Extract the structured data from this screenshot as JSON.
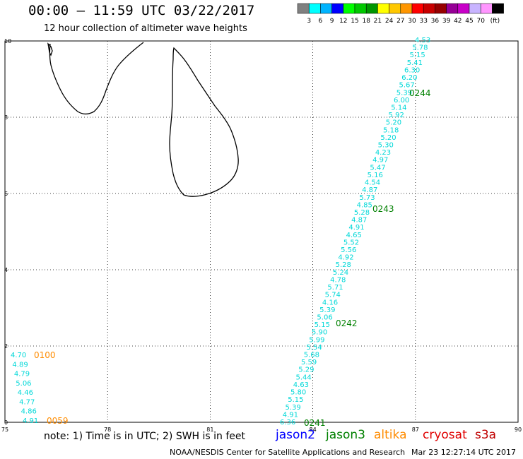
{
  "header": {
    "title": "00:00 – 11:59 UTC 03/22/2017",
    "subtitle": "12 hour collection of altimeter wave heights"
  },
  "legend": {
    "unit": "(ft)",
    "colors": [
      "#808080",
      "#00ffff",
      "#00b4ff",
      "#0000ff",
      "#00ff00",
      "#00c800",
      "#009600",
      "#ffff00",
      "#ffc800",
      "#ff9600",
      "#ff0000",
      "#c80000",
      "#960000",
      "#960096",
      "#c800c8",
      "#c8b4ff",
      "#ff96ff",
      "#000000"
    ],
    "labels": [
      "3",
      "6",
      "9",
      "12",
      "15",
      "18",
      "21",
      "24",
      "27",
      "30",
      "33",
      "36",
      "39",
      "42",
      "45",
      "70"
    ]
  },
  "axes": {
    "x_ticks": [
      "75",
      "78",
      "81",
      "84",
      "87",
      "90"
    ],
    "y_ticks": [
      "0",
      "2",
      "4",
      "6",
      "8",
      "10"
    ]
  },
  "tracks": [
    {
      "name": "jason3_main",
      "color": "#00d8d8",
      "values": [
        "6.36",
        "4.91",
        "5.39",
        "5.15",
        "5.80",
        "4.63",
        "5.44",
        "5.29",
        "5.59",
        "5.68",
        "5.54",
        "5.99",
        "5.90",
        "5.15",
        "5.06",
        "5.39",
        "4.16",
        "5.74",
        "5.71",
        "4.78",
        "5.24",
        "5.28",
        "4.92",
        "5.56",
        "5.52",
        "4.65",
        "4.91",
        "4.87",
        "5.28",
        "4.85",
        "5.73",
        "4.87",
        "4.54",
        "5.16",
        "5.47",
        "4.97",
        "4.23",
        "5.30",
        "5.20",
        "5.18",
        "5.20",
        "5.92",
        "5.14",
        "6.00",
        "5.39",
        "5.67",
        "6.20",
        "6.30",
        "5.41",
        "5.15",
        "5.78",
        "4.53"
      ]
    },
    {
      "name": "altika_west",
      "color": "#00d8d8",
      "values": [
        "4.91",
        "4.86",
        "4.77",
        "4.46",
        "5.06",
        "4.79",
        "4.89",
        "4.70"
      ]
    }
  ],
  "time_labels": [
    {
      "text": "0241",
      "color": "#008000"
    },
    {
      "text": "0242",
      "color": "#008000"
    },
    {
      "text": "0243",
      "color": "#008000"
    },
    {
      "text": "0244",
      "color": "#008000"
    },
    {
      "text": "0059",
      "color": "#ff8c00"
    },
    {
      "text": "0100",
      "color": "#ff8c00"
    }
  ],
  "note": "note: 1) Time is in UTC; 2) SWH is in feet",
  "satellites": [
    {
      "name": "jason2",
      "color": "#0000ff"
    },
    {
      "name": "jason3",
      "color": "#008000"
    },
    {
      "name": "altika",
      "color": "#ff8c00"
    },
    {
      "name": "cryosat",
      "color": "#e00000"
    },
    {
      "name": "s3a",
      "color": "#c00000"
    }
  ],
  "footer": {
    "center": "NOAA/NESDIS Center for Satellite Applications and Research",
    "timestamp": "Mar 23 12:27:14 UTC 2017"
  }
}
